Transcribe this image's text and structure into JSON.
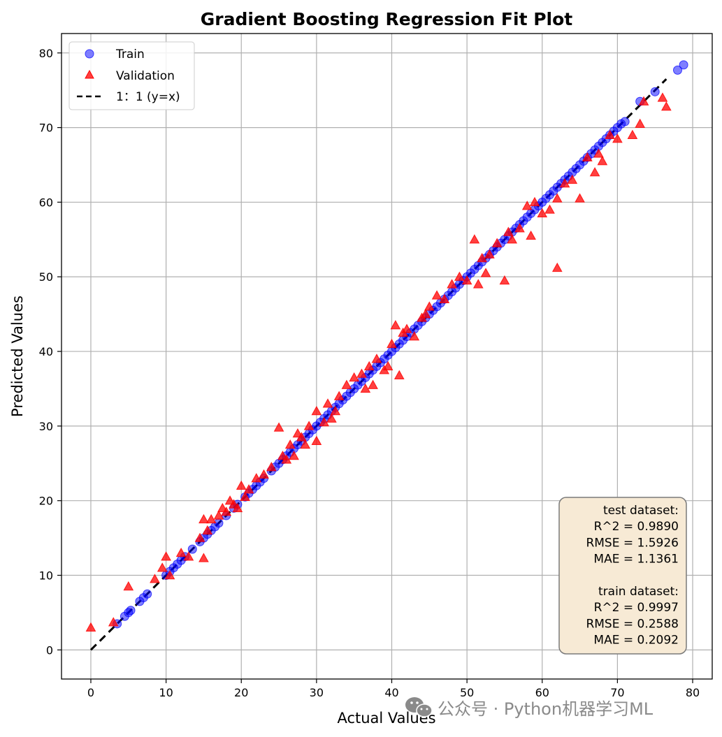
{
  "chart_data": {
    "type": "scatter",
    "title": "Gradient Boosting Regression Fit Plot",
    "xlabel": "Actual Values",
    "ylabel": "Predicted Values",
    "xlim": [
      -3.9,
      82.6
    ],
    "ylim": [
      -3.9,
      82.6
    ],
    "xticks": [
      0,
      10,
      20,
      30,
      40,
      50,
      60,
      70,
      80
    ],
    "yticks": [
      0,
      10,
      20,
      30,
      40,
      50,
      60,
      70,
      80
    ],
    "grid": true,
    "legend_position": "top-left",
    "legend": {
      "train": "Train",
      "validation": "Validation",
      "identity": "1：1 (y=x)"
    },
    "identity_line": {
      "from": 0,
      "to": 76.5
    },
    "colors": {
      "train": "#0000ff",
      "validation": "#ff0000",
      "identity": "#000000"
    },
    "series": [
      {
        "name": "Train",
        "marker": "circle",
        "x": [
          3.5,
          4.5,
          5.0,
          5.3,
          6.5,
          7.0,
          7.5,
          10.0,
          10.5,
          11.0,
          11.5,
          12.0,
          12.5,
          13.5,
          14.5,
          15.0,
          15.5,
          16.0,
          16.5,
          17.0,
          18.0,
          19.0,
          19.5,
          20.5,
          21.0,
          21.5,
          22.0,
          22.5,
          23.0,
          24.0,
          24.5,
          25.0,
          25.5,
          26.0,
          26.5,
          27.0,
          27.5,
          28.0,
          28.5,
          29.0,
          29.5,
          30.0,
          30.5,
          31.0,
          31.5,
          32.0,
          32.5,
          33.0,
          33.5,
          34.0,
          34.5,
          35.0,
          35.5,
          36.0,
          36.5,
          37.0,
          37.5,
          38.0,
          38.5,
          39.0,
          39.5,
          40.0,
          40.5,
          41.0,
          41.5,
          42.0,
          42.5,
          43.0,
          43.5,
          44.0,
          44.5,
          45.0,
          45.5,
          46.0,
          46.5,
          47.0,
          47.5,
          48.0,
          48.5,
          49.0,
          49.5,
          50.0,
          50.5,
          51.0,
          51.5,
          52.0,
          52.5,
          53.0,
          53.5,
          54.0,
          54.5,
          55.0,
          55.5,
          56.0,
          56.5,
          57.0,
          57.5,
          58.0,
          58.5,
          59.0,
          59.5,
          60.0,
          60.5,
          61.0,
          61.5,
          62.0,
          62.5,
          63.0,
          63.5,
          64.0,
          64.5,
          65.0,
          65.5,
          66.0,
          66.5,
          67.0,
          67.5,
          68.0,
          68.5,
          69.0,
          69.5,
          70.0,
          70.5,
          71.0,
          73.0,
          75.0,
          78.0,
          78.8
        ],
        "y": [
          3.5,
          4.5,
          5.0,
          5.3,
          6.5,
          7.0,
          7.5,
          10.0,
          10.5,
          11.0,
          11.5,
          12.0,
          12.5,
          13.5,
          14.5,
          15.0,
          15.5,
          16.0,
          16.5,
          17.0,
          18.0,
          19.0,
          19.5,
          20.5,
          21.0,
          21.5,
          22.0,
          22.5,
          23.0,
          24.0,
          24.5,
          25.0,
          25.5,
          26.0,
          26.5,
          27.0,
          27.5,
          28.0,
          28.5,
          29.0,
          29.5,
          30.0,
          30.5,
          31.0,
          31.5,
          32.0,
          32.5,
          33.0,
          33.5,
          34.0,
          34.5,
          35.0,
          35.5,
          36.0,
          36.5,
          37.0,
          37.5,
          38.0,
          38.5,
          39.0,
          39.5,
          40.0,
          40.5,
          41.0,
          41.5,
          42.0,
          42.5,
          43.0,
          43.5,
          44.0,
          44.5,
          45.0,
          45.5,
          46.0,
          46.5,
          47.0,
          47.5,
          48.0,
          48.5,
          49.0,
          49.5,
          50.0,
          50.5,
          51.0,
          51.5,
          52.0,
          52.5,
          53.0,
          53.5,
          54.0,
          54.5,
          55.0,
          55.5,
          56.0,
          56.5,
          57.0,
          57.5,
          58.0,
          58.5,
          59.0,
          59.5,
          60.0,
          60.5,
          61.0,
          61.5,
          62.0,
          62.5,
          63.0,
          63.5,
          64.0,
          64.5,
          65.0,
          65.5,
          66.0,
          66.5,
          67.0,
          67.5,
          68.0,
          68.5,
          69.0,
          69.5,
          70.0,
          70.5,
          70.8,
          73.5,
          74.8,
          77.7,
          78.4
        ]
      },
      {
        "name": "Validation",
        "marker": "triangle",
        "x": [
          0.0,
          3.0,
          5.0,
          8.5,
          9.5,
          10.0,
          10.5,
          12.0,
          13.0,
          14.5,
          15.0,
          15.0,
          15.5,
          16.0,
          17.0,
          17.5,
          18.0,
          18.5,
          19.0,
          19.5,
          20.0,
          20.5,
          21.0,
          22.0,
          23.0,
          24.0,
          25.0,
          25.5,
          26.0,
          26.5,
          27.0,
          27.5,
          28.0,
          28.5,
          29.0,
          30.0,
          30.0,
          31.0,
          31.5,
          32.0,
          32.5,
          33.0,
          34.0,
          35.0,
          36.0,
          36.5,
          37.0,
          37.5,
          38.0,
          39.0,
          39.5,
          40.0,
          40.5,
          41.0,
          41.5,
          42.0,
          43.0,
          44.0,
          44.5,
          45.0,
          46.0,
          47.0,
          48.0,
          49.0,
          50.0,
          51.0,
          51.5,
          52.0,
          52.5,
          53.0,
          54.0,
          55.0,
          55.5,
          56.0,
          57.0,
          58.0,
          58.5,
          59.0,
          60.0,
          61.0,
          62.0,
          62.0,
          63.0,
          64.0,
          65.0,
          66.0,
          67.0,
          67.5,
          68.0,
          69.0,
          70.0,
          72.0,
          73.0,
          73.5,
          76.0,
          76.5
        ],
        "y": [
          3.0,
          3.7,
          8.5,
          9.5,
          11.0,
          12.5,
          10.0,
          13.0,
          12.5,
          15.0,
          12.3,
          17.5,
          16.0,
          17.5,
          18.0,
          19.0,
          18.5,
          20.0,
          19.5,
          19.0,
          22.0,
          20.5,
          21.5,
          23.0,
          23.5,
          24.5,
          29.8,
          26.0,
          25.5,
          27.5,
          26.0,
          29.0,
          28.5,
          27.5,
          30.0,
          28.0,
          32.0,
          30.5,
          33.0,
          31.0,
          32.0,
          34.0,
          35.5,
          36.5,
          37.0,
          35.0,
          38.0,
          35.5,
          39.0,
          37.5,
          38.0,
          41.0,
          43.5,
          36.8,
          42.5,
          43.0,
          42.0,
          44.5,
          45.0,
          46.0,
          47.5,
          47.0,
          49.0,
          50.0,
          49.5,
          55.0,
          49.0,
          52.5,
          50.5,
          53.0,
          54.5,
          49.5,
          56.0,
          55.0,
          56.5,
          59.5,
          55.5,
          60.0,
          58.5,
          59.0,
          51.2,
          60.5,
          62.5,
          63.0,
          60.5,
          66.0,
          64.0,
          66.5,
          65.5,
          69.0,
          68.5,
          69.0,
          70.5,
          73.5,
          74.0,
          72.8
        ]
      }
    ],
    "annotation_box": {
      "lines": [
        "test dataset:",
        "R^2 = 0.9890",
        "RMSE = 1.5926",
        "MAE = 1.1361",
        "",
        "train dataset:",
        "R^2 = 0.9997",
        "RMSE = 0.2588",
        "MAE = 0.2092"
      ],
      "background": "#f7ead5",
      "border": "#7a7a7a"
    }
  },
  "watermark": {
    "icon": "wechat-icon",
    "text": "公众号 · Python机器学习ML"
  }
}
